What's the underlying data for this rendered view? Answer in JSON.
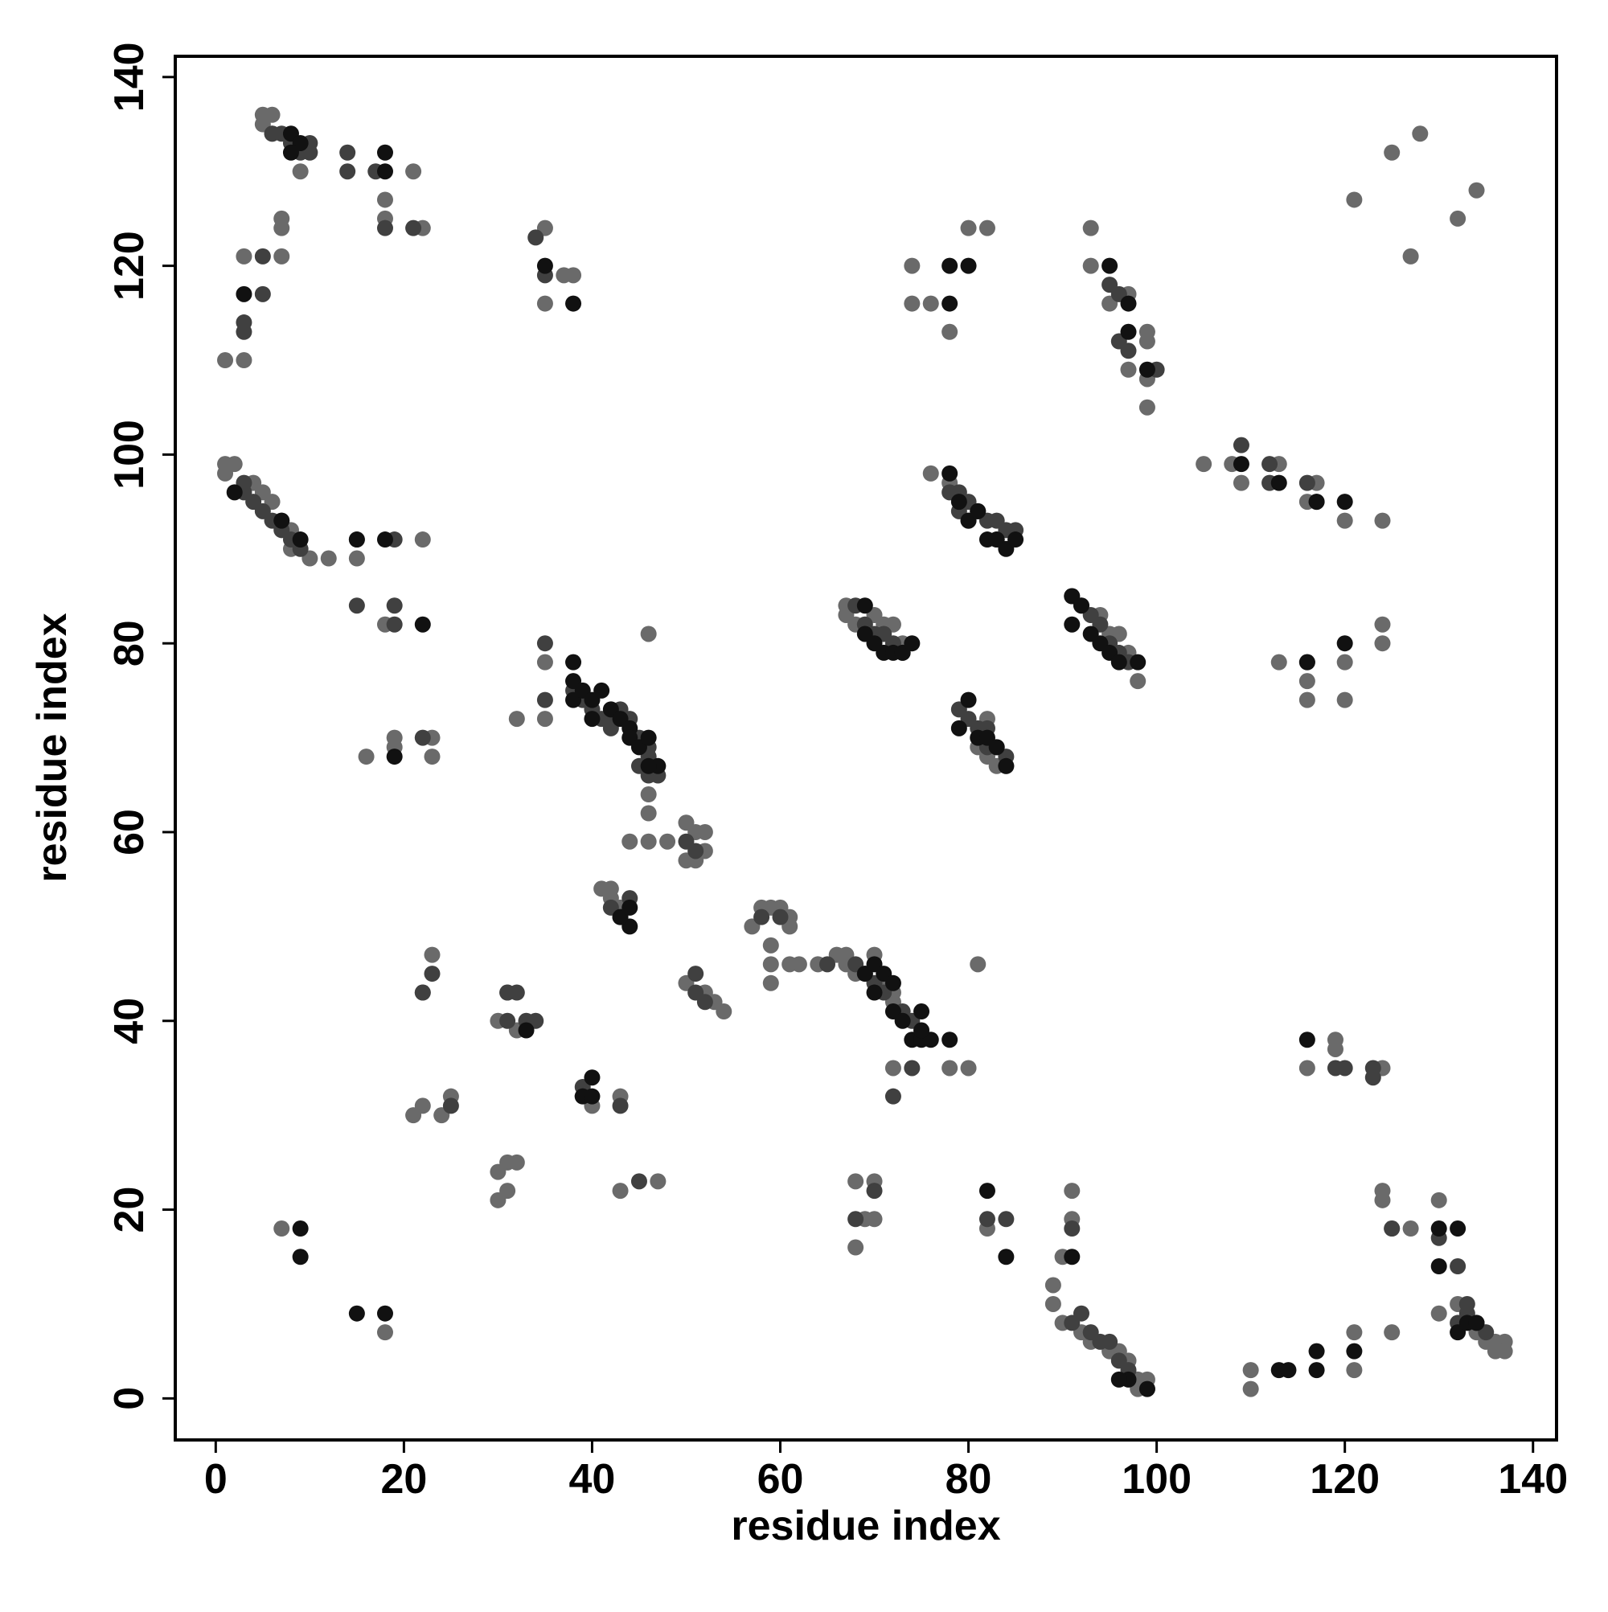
{
  "chart_data": {
    "type": "scatter",
    "x_label": "residue index",
    "y_label": "residue index",
    "xlim": [
      -4.3,
      142.5
    ],
    "ylim": [
      -4.4,
      142.2
    ],
    "xticks": [
      0,
      20,
      40,
      60,
      80,
      100,
      120,
      140
    ],
    "yticks": [
      0,
      20,
      40,
      60,
      80,
      100,
      120,
      140
    ],
    "series": [
      {
        "color": "#6a6a6a",
        "x": [
          1,
          3,
          3,
          7,
          7,
          7,
          5,
          6,
          5,
          6,
          9,
          18,
          18,
          21,
          22,
          35,
          35,
          37,
          38,
          74,
          74,
          76,
          78,
          80,
          82,
          93,
          93,
          95,
          97,
          99,
          99,
          99,
          99,
          97,
          105,
          108,
          109,
          113,
          117,
          116,
          120,
          124,
          121,
          125,
          127,
          128,
          132,
          134,
          1,
          1,
          2,
          4,
          5,
          6,
          7,
          8,
          8,
          10,
          12,
          22,
          18,
          15,
          35,
          35,
          32,
          46,
          46,
          46,
          46,
          44,
          48,
          50,
          51,
          52,
          52,
          50,
          51,
          41,
          42,
          42,
          43,
          53,
          54,
          52,
          50,
          58,
          59,
          60,
          61,
          57,
          61,
          59,
          59,
          59,
          61,
          62,
          64,
          66,
          67,
          67,
          68,
          70,
          71,
          72,
          72,
          76,
          78,
          81,
          80,
          78,
          72,
          67,
          67,
          68,
          70,
          71,
          72,
          73,
          84,
          83,
          82,
          81,
          82,
          98,
          97,
          96,
          94,
          95,
          91,
          113,
          116,
          116,
          120,
          120,
          124,
          124,
          116,
          119,
          119,
          124,
          124,
          124,
          125,
          127,
          130,
          130,
          132,
          134,
          135,
          136,
          137,
          137,
          136,
          110,
          110,
          121,
          121,
          125,
          90,
          89,
          89,
          90,
          91,
          91,
          92,
          93,
          95,
          96,
          97,
          98,
          99,
          99,
          98,
          82,
          68,
          68,
          69,
          70,
          70,
          47,
          43,
          30,
          30,
          31,
          31,
          32,
          25,
          24,
          22,
          21,
          23,
          22,
          39,
          40,
          43,
          7,
          18,
          16,
          19,
          19,
          23,
          23,
          30,
          32,
          31
        ],
        "y": [
          110,
          110,
          121,
          121,
          124,
          125,
          136,
          136,
          135,
          134,
          130,
          127,
          125,
          130,
          124,
          124,
          116,
          119,
          119,
          120,
          116,
          116,
          113,
          124,
          124,
          124,
          120,
          116,
          117,
          113,
          112,
          108,
          105,
          109,
          99,
          99,
          97,
          99,
          97,
          95,
          93,
          93,
          127,
          132,
          121,
          134,
          125,
          128,
          99,
          98,
          99,
          97,
          96,
          95,
          93,
          92,
          90,
          89,
          89,
          91,
          82,
          89,
          78,
          72,
          72,
          81,
          64,
          62,
          59,
          59,
          59,
          61,
          60,
          60,
          58,
          57,
          57,
          54,
          54,
          53,
          52,
          42,
          41,
          43,
          44,
          52,
          52,
          52,
          51,
          50,
          50,
          48,
          46,
          44,
          46,
          46,
          46,
          47,
          47,
          46,
          45,
          47,
          44,
          43,
          42,
          98,
          97,
          46,
          35,
          35,
          35,
          84,
          83,
          82,
          83,
          82,
          82,
          80,
          67,
          67,
          68,
          69,
          72,
          76,
          79,
          81,
          83,
          81,
          85,
          78,
          76,
          74,
          78,
          74,
          82,
          80,
          35,
          38,
          37,
          35,
          22,
          21,
          18,
          18,
          21,
          9,
          10,
          7,
          6,
          6,
          6,
          5,
          5,
          3,
          1,
          7,
          3,
          7,
          15,
          12,
          10,
          8,
          22,
          19,
          7,
          6,
          5,
          5,
          4,
          2,
          2,
          1,
          1,
          18,
          23,
          16,
          19,
          19,
          23,
          23,
          22,
          24,
          21,
          22,
          25,
          25,
          32,
          30,
          31,
          30,
          47,
          43,
          32,
          31,
          32,
          18,
          7,
          68,
          70,
          69,
          70,
          68,
          40,
          39,
          43
        ]
      },
      {
        "color": "#404040",
        "x": [
          3,
          3,
          5,
          5,
          6,
          7,
          8,
          9,
          10,
          10,
          14,
          14,
          17,
          18,
          21,
          34,
          35,
          96,
          95,
          96,
          97,
          100,
          109,
          112,
          112,
          116,
          119,
          123,
          123,
          3,
          3,
          4,
          5,
          6,
          7,
          8,
          9,
          15,
          19,
          15,
          19,
          19,
          22,
          35,
          35,
          23,
          31,
          31,
          32,
          33,
          34,
          39,
          43,
          45,
          44,
          43,
          42,
          51,
          51,
          52,
          50,
          51,
          45,
          46,
          46,
          45,
          46,
          47,
          42,
          43,
          44,
          38,
          39,
          40,
          41,
          42,
          60,
          58,
          65,
          68,
          69,
          70,
          71,
          73,
          74,
          72,
          74,
          68,
          69,
          70,
          71,
          72,
          73,
          79,
          80,
          81,
          82,
          83,
          84,
          82,
          78,
          79,
          80,
          81,
          82,
          83,
          84,
          85,
          83,
          79,
          80,
          92,
          93,
          94,
          95,
          96,
          97,
          117,
          116,
          120,
          125,
          130,
          132,
          133,
          133,
          134,
          135,
          132,
          92,
          91,
          93,
          94,
          95,
          96,
          97,
          91,
          84,
          82,
          70,
          68,
          22,
          25
        ],
        "y": [
          114,
          113,
          121,
          117,
          134,
          134,
          133,
          132,
          133,
          132,
          132,
          130,
          130,
          124,
          124,
          123,
          119,
          117,
          118,
          112,
          111,
          109,
          101,
          99,
          97,
          97,
          35,
          34,
          35,
          97,
          96,
          95,
          94,
          93,
          92,
          91,
          90,
          91,
          91,
          84,
          84,
          82,
          70,
          80,
          74,
          45,
          43,
          40,
          43,
          40,
          40,
          33,
          31,
          23,
          53,
          51,
          52,
          45,
          43,
          42,
          59,
          58,
          70,
          69,
          68,
          67,
          66,
          66,
          71,
          73,
          72,
          75,
          74,
          73,
          72,
          72,
          51,
          51,
          46,
          46,
          45,
          44,
          43,
          41,
          40,
          32,
          35,
          84,
          82,
          81,
          81,
          80,
          79,
          73,
          72,
          71,
          71,
          69,
          68,
          69,
          96,
          96,
          95,
          94,
          93,
          93,
          92,
          92,
          91,
          94,
          93,
          84,
          83,
          82,
          80,
          79,
          78,
          95,
          78,
          35,
          18,
          17,
          14,
          10,
          9,
          8,
          7,
          8,
          9,
          8,
          7,
          6,
          6,
          4,
          3,
          18,
          19,
          19,
          22,
          19,
          43,
          31
        ]
      },
      {
        "color": "#111111",
        "x": [
          3,
          8,
          9,
          8,
          18,
          18,
          35,
          38,
          78,
          78,
          80,
          95,
          97,
          97,
          99,
          109,
          113,
          117,
          120,
          2,
          7,
          9,
          15,
          18,
          22,
          19,
          38,
          38,
          38,
          39,
          40,
          40,
          41,
          42,
          43,
          44,
          44,
          45,
          46,
          47,
          46,
          44,
          43,
          33,
          39,
          40,
          40,
          44,
          69,
          69,
          70,
          71,
          72,
          73,
          74,
          79,
          80,
          81,
          82,
          83,
          84,
          69,
          70,
          70,
          71,
          72,
          72,
          73,
          74,
          75,
          75,
          76,
          78,
          75,
          78,
          79,
          80,
          81,
          82,
          83,
          84,
          85,
          91,
          92,
          91,
          93,
          94,
          95,
          96,
          98,
          116,
          116,
          120,
          130,
          132,
          130,
          132,
          133,
          134,
          82,
          84,
          91,
          9,
          9,
          15,
          18,
          117,
          117,
          121,
          113,
          114,
          97,
          96,
          99
        ],
        "y": [
          117,
          134,
          133,
          132,
          132,
          130,
          120,
          116,
          116,
          120,
          120,
          120,
          116,
          113,
          109,
          99,
          97,
          95,
          95,
          96,
          93,
          91,
          91,
          91,
          82,
          68,
          78,
          76,
          74,
          75,
          74,
          72,
          75,
          73,
          72,
          71,
          70,
          69,
          70,
          67,
          67,
          50,
          51,
          39,
          32,
          34,
          32,
          52,
          84,
          81,
          80,
          79,
          79,
          79,
          80,
          71,
          74,
          70,
          70,
          69,
          67,
          45,
          46,
          43,
          45,
          44,
          41,
          40,
          38,
          41,
          38,
          38,
          38,
          39,
          98,
          95,
          93,
          94,
          91,
          91,
          90,
          91,
          85,
          84,
          82,
          81,
          80,
          79,
          78,
          78,
          38,
          78,
          80,
          18,
          18,
          14,
          7,
          8,
          8,
          22,
          15,
          15,
          18,
          15,
          9,
          9,
          5,
          3,
          5,
          3,
          3,
          2,
          2,
          1
        ]
      }
    ]
  }
}
